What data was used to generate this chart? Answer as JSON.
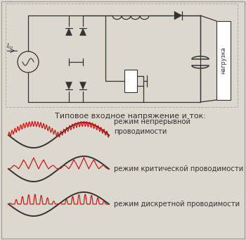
{
  "bg_color": "#ddd8ce",
  "subtitle": "Типовое входное напряжение и ток:",
  "label1": "режим непрерывной\nпроводимости",
  "label2": "режим критической проводимости",
  "label3": "режим дискретной проводимости",
  "label_fontsize": 7.2,
  "subtitle_fontsize": 8.0,
  "line_color_dark": "#333333",
  "line_color_red": "#cc1111",
  "border_color": "#aaaaaa",
  "circuit_border": "#999999",
  "load_text": "нагрузка",
  "iin_label": "I_in"
}
